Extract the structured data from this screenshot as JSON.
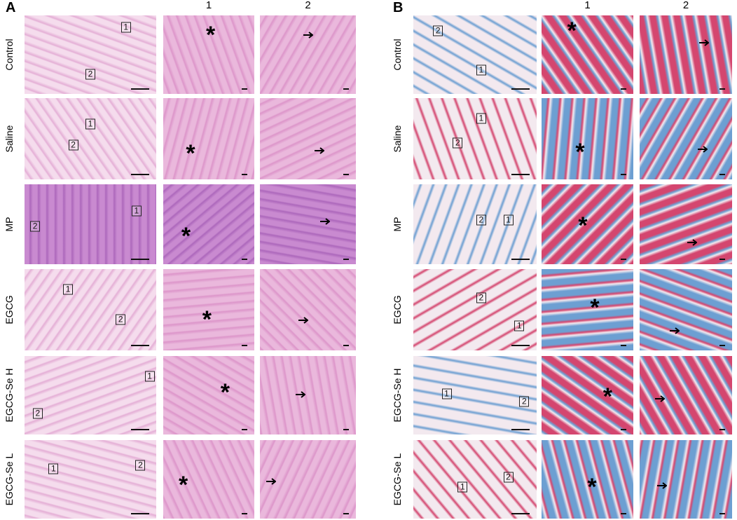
{
  "panels": [
    {
      "label": "A",
      "columns": [
        "1",
        "2"
      ],
      "asterisk": "*",
      "rows": [
        {
          "label": "Control",
          "boxes": [
            "1",
            "2"
          ]
        },
        {
          "label": "Saline",
          "boxes": [
            "1",
            "2"
          ]
        },
        {
          "label": "MP",
          "boxes": [
            "1",
            "2"
          ]
        },
        {
          "label": "EGCG",
          "boxes": [
            "1",
            "2"
          ]
        },
        {
          "label": "EGCG-Se H",
          "boxes": [
            "1",
            "2"
          ]
        },
        {
          "label": "EGCG-Se L",
          "boxes": [
            "1",
            "2"
          ]
        }
      ]
    },
    {
      "label": "B",
      "columns": [
        "1",
        "2"
      ],
      "asterisk": "*",
      "rows": [
        {
          "label": "Control",
          "boxes": [
            "1",
            "2"
          ]
        },
        {
          "label": "Saline",
          "boxes": [
            "1",
            "2"
          ]
        },
        {
          "label": "MP",
          "boxes": [
            "1",
            "2"
          ]
        },
        {
          "label": "EGCG",
          "boxes": [
            "1",
            "2"
          ]
        },
        {
          "label": "EGCG-Se H",
          "boxes": [
            "1",
            "2"
          ]
        },
        {
          "label": "EGCG-Se L",
          "boxes": [
            "1",
            "2"
          ]
        }
      ]
    }
  ]
}
